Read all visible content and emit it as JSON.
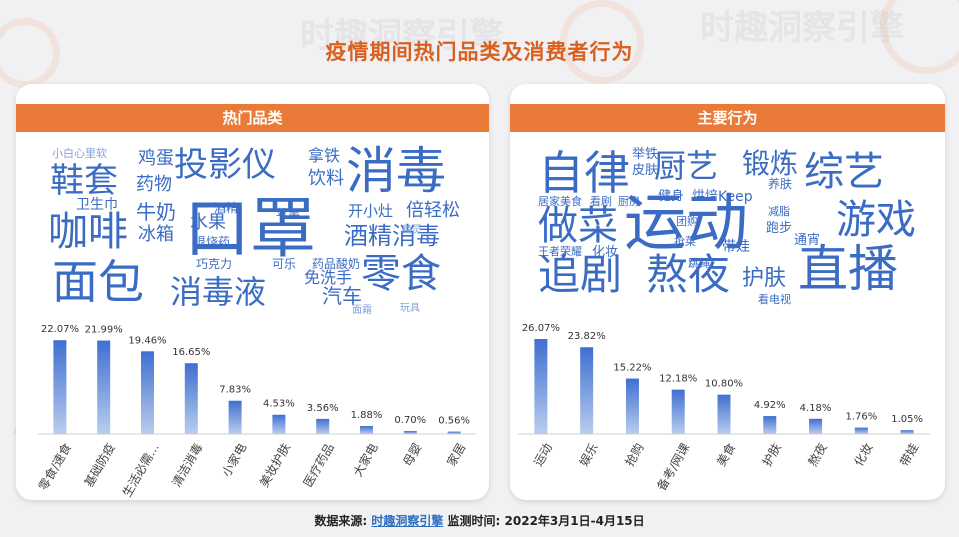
{
  "page": {
    "title": "疫情期间热门品类及消费者行为",
    "watermark": "时趣洞察引擎",
    "footer_label": "数据来源:",
    "footer_source": "时趣洞察引擎",
    "footer_period": "监测时间: 2022年3月1日-4月15日"
  },
  "left_card": {
    "header": "热门品类",
    "words": [
      "口罩",
      "消毒",
      "面包",
      "咖啡",
      "零食",
      "消毒液",
      "投影仪",
      "鞋套",
      "酒精消毒",
      "鸡蛋",
      "药物",
      "牛奶",
      "水果",
      "冰箱",
      "饮料",
      "拿铁",
      "开小灶",
      "倍轻松",
      "卫生巾",
      "汽车",
      "免洗手",
      "巧克力",
      "退烧药",
      "酒精",
      "苹果",
      "可乐",
      "药品",
      "酸奶",
      "精灵",
      "玩具",
      "面霜",
      "小白心里软"
    ]
  },
  "right_card": {
    "header": "主要行为",
    "words": [
      "运动",
      "自律",
      "做菜",
      "追剧",
      "熬夜",
      "直播",
      "综艺",
      "游戏",
      "厨艺",
      "锻炼",
      "护肤",
      "举铁",
      "皮肤",
      "健身",
      "烘焙",
      "Keep",
      "带娃",
      "跑步",
      "通宵",
      "看电视",
      "团购",
      "跳绳",
      "化妆",
      "抢菜",
      "减脂",
      "养肤",
      "居家美食",
      "看剧",
      "厨房",
      "王者荣耀"
    ]
  },
  "chart_data": [
    {
      "type": "bar",
      "title": "",
      "xlabel": "",
      "ylabel": "",
      "categories": [
        "零食/速食",
        "基础防疫",
        "生活必需...",
        "清洁消毒",
        "小家电",
        "美妆护肤",
        "医疗药品",
        "大家电",
        "母婴",
        "家居"
      ],
      "values": [
        22.07,
        21.99,
        19.46,
        16.65,
        7.83,
        4.53,
        3.56,
        1.88,
        0.7,
        0.56
      ],
      "value_labels": [
        "22.07%",
        "21.99%",
        "19.46%",
        "16.65%",
        "7.83%",
        "4.53%",
        "3.56%",
        "1.88%",
        "0.70%",
        "0.56%"
      ],
      "ylim": [
        0,
        24
      ],
      "grid": false
    },
    {
      "type": "bar",
      "title": "",
      "xlabel": "",
      "ylabel": "",
      "categories": [
        "运动",
        "娱乐",
        "抢购",
        "备考/网课",
        "美食",
        "护肤",
        "熬夜",
        "化妆",
        "带娃"
      ],
      "values": [
        26.07,
        23.82,
        15.22,
        12.18,
        10.8,
        4.92,
        4.18,
        1.76,
        1.05
      ],
      "value_labels": [
        "26.07%",
        "23.82%",
        "15.22%",
        "12.18%",
        "10.80%",
        "4.92%",
        "4.18%",
        "1.76%",
        "1.05%"
      ],
      "ylim": [
        0,
        28
      ],
      "grid": false
    }
  ],
  "colors": {
    "accent": "#e97a37",
    "title": "#d9601e",
    "bar_top": "#3f6fd0",
    "bar_bottom": "#b9cdee",
    "word": "#3b6cc4",
    "link": "#2f6ec1"
  }
}
